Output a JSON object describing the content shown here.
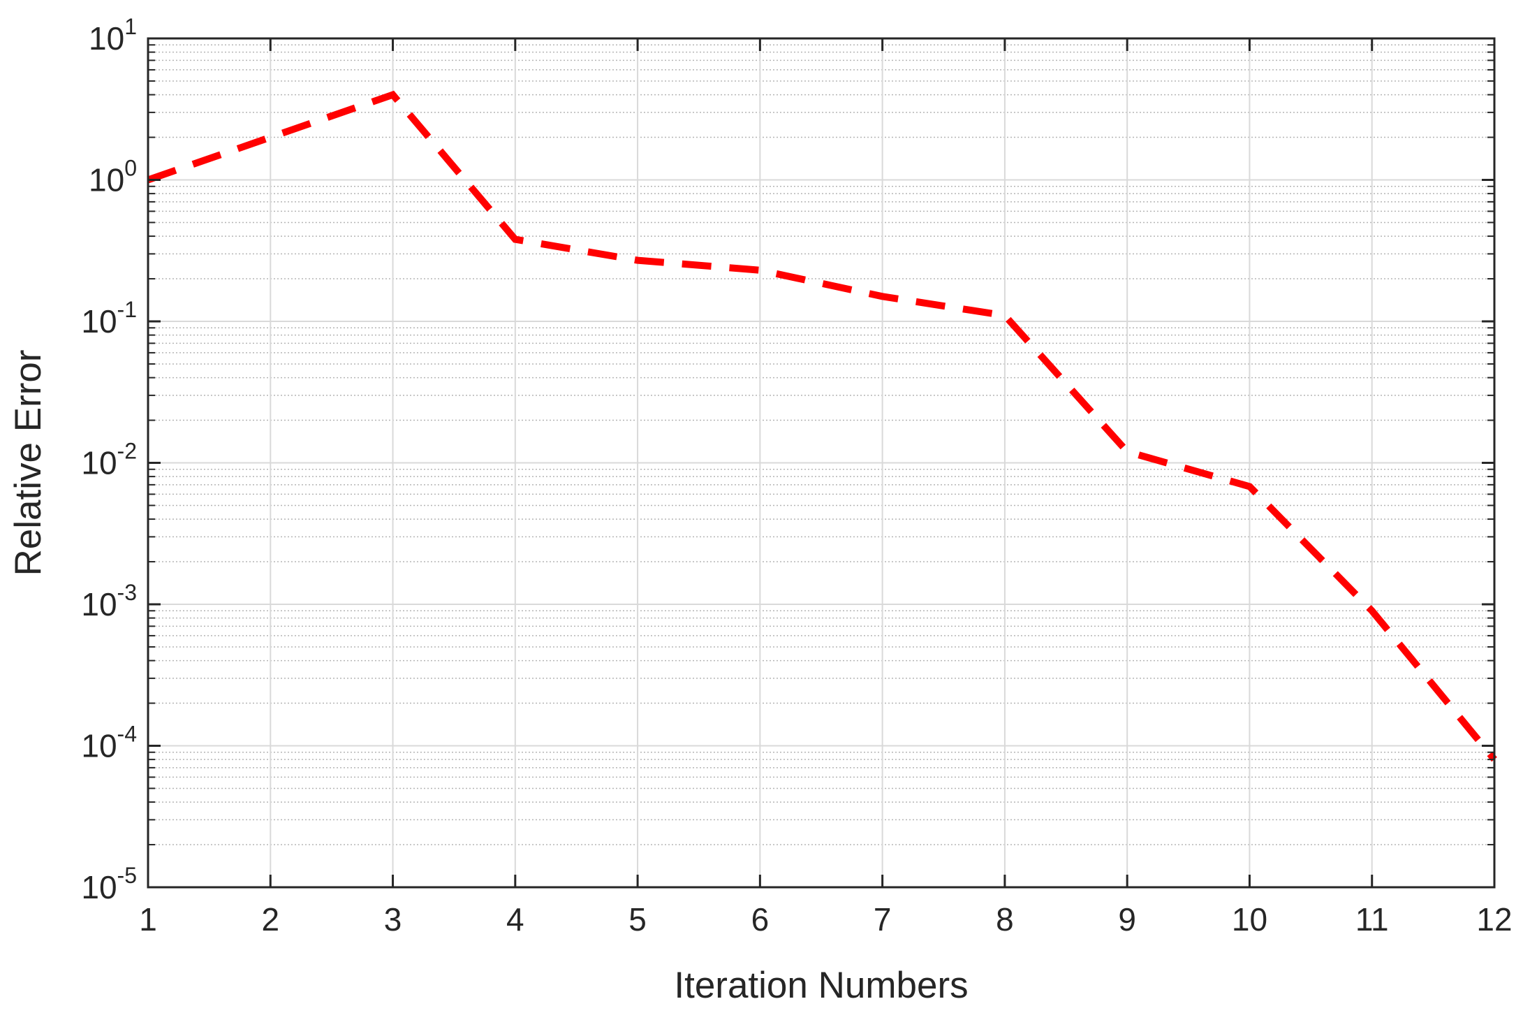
{
  "chart_data": {
    "type": "line",
    "title": "",
    "xlabel": "Iteration Numbers",
    "ylabel": "Relative Error",
    "xlim": [
      1,
      12
    ],
    "ylim": [
      1e-05,
      10
    ],
    "yscale": "log",
    "grid": true,
    "minor_grid": true,
    "x_ticks": [
      1,
      2,
      3,
      4,
      5,
      6,
      7,
      8,
      9,
      10,
      11,
      12
    ],
    "y_ticks": [
      {
        "base": "10",
        "exp": "-5",
        "value": 1e-05
      },
      {
        "base": "10",
        "exp": "-4",
        "value": 0.0001
      },
      {
        "base": "10",
        "exp": "-3",
        "value": 0.001
      },
      {
        "base": "10",
        "exp": "-2",
        "value": 0.01
      },
      {
        "base": "10",
        "exp": "-1",
        "value": 0.1
      },
      {
        "base": "10",
        "exp": "0",
        "value": 1
      },
      {
        "base": "10",
        "exp": "1",
        "value": 10
      }
    ],
    "series": [
      {
        "color": "#ff0000",
        "line_style": "dashed",
        "x": [
          1,
          2,
          3,
          4,
          5,
          6,
          7,
          8,
          9,
          10,
          11,
          12
        ],
        "y": [
          1.0,
          2.0,
          4.0,
          0.38,
          0.27,
          0.23,
          0.15,
          0.11,
          0.012,
          0.0068,
          0.0009,
          8e-05
        ]
      }
    ]
  }
}
